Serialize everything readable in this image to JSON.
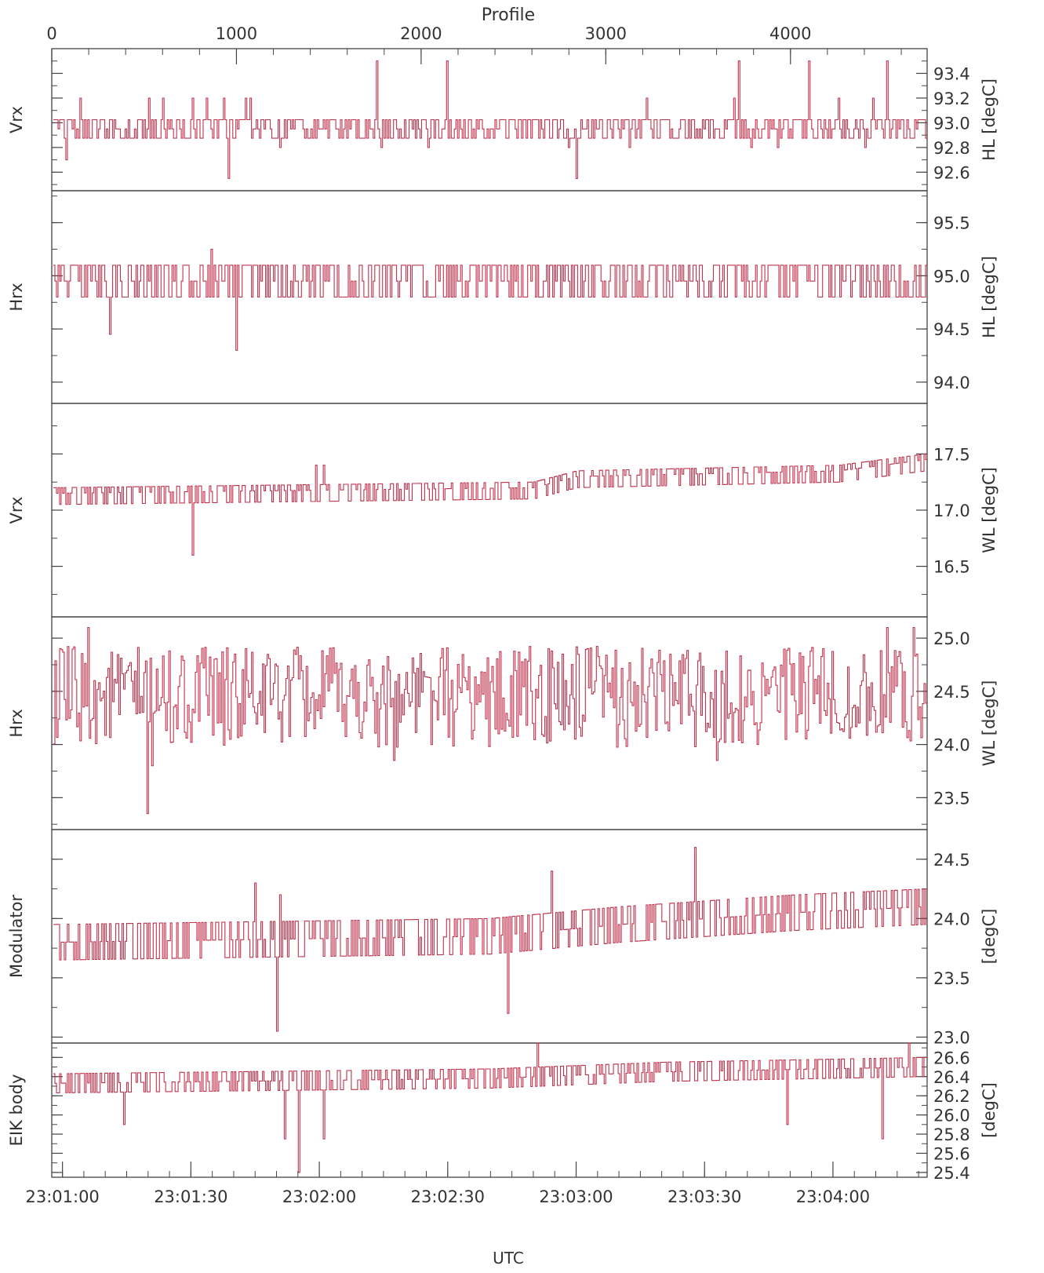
{
  "colors": {
    "series": "#c0334d",
    "axis": "#444444",
    "text": "#333333"
  },
  "top_axis": {
    "label": "Profile",
    "ticks": [
      "0",
      "1000",
      "2000",
      "3000",
      "4000"
    ],
    "values": [
      0,
      1000,
      2000,
      3000,
      4000
    ],
    "range": [
      0,
      4740
    ]
  },
  "bottom_axis": {
    "label": "UTC",
    "ticks": [
      "23:01:00",
      "23:01:30",
      "23:02:00",
      "23:02:30",
      "23:03:00",
      "23:03:30",
      "23:04:00"
    ],
    "values_seconds": [
      60,
      90,
      120,
      150,
      180,
      210,
      240
    ],
    "range_seconds": [
      57.5,
      262
    ]
  },
  "chart_data": [
    {
      "type": "line",
      "ylabel_left": "Vrx",
      "ylabel_right": "HL  [degC]",
      "ylim": [
        92.45,
        93.6
      ],
      "ytick_labels": [
        "92.6",
        "92.8",
        "93.0",
        "93.2",
        "93.4"
      ],
      "ytick_values": [
        92.6,
        92.8,
        93.0,
        93.2,
        93.4
      ],
      "baseline": 92.95,
      "lo": 92.875,
      "hi": 93.025,
      "spikes": [
        [
          0.015,
          92.7
        ],
        [
          0.03,
          93.2
        ],
        [
          0.11,
          93.2
        ],
        [
          0.125,
          93.2
        ],
        [
          0.16,
          93.2
        ],
        [
          0.175,
          93.2
        ],
        [
          0.195,
          93.2
        ],
        [
          0.22,
          93.2
        ],
        [
          0.2,
          92.55
        ],
        [
          0.225,
          93.2
        ],
        [
          0.26,
          92.8
        ],
        [
          0.37,
          93.5
        ],
        [
          0.375,
          92.8
        ],
        [
          0.45,
          93.5
        ],
        [
          0.43,
          92.8
        ],
        [
          0.6,
          92.55
        ],
        [
          0.59,
          92.8
        ],
        [
          0.68,
          93.2
        ],
        [
          0.66,
          92.8
        ],
        [
          0.78,
          93.2
        ],
        [
          0.785,
          93.5
        ],
        [
          0.8,
          92.8
        ],
        [
          0.83,
          92.8
        ],
        [
          0.865,
          93.5
        ],
        [
          0.9,
          93.2
        ],
        [
          0.93,
          92.8
        ],
        [
          0.955,
          93.5
        ],
        [
          0.94,
          93.2
        ]
      ]
    },
    {
      "type": "line",
      "ylabel_left": "Hrx",
      "ylabel_right": "HL  [degC]",
      "ylim": [
        93.8,
        95.8
      ],
      "ytick_labels": [
        "94.0",
        "94.5",
        "95.0",
        "95.5"
      ],
      "ytick_values": [
        94.0,
        94.5,
        95.0,
        95.5
      ],
      "baseline": 94.95,
      "lo": 94.8,
      "hi": 95.1,
      "spikes": [
        [
          0.065,
          94.45
        ],
        [
          0.085,
          95.1
        ],
        [
          0.14,
          95.1
        ],
        [
          0.18,
          95.25
        ],
        [
          0.21,
          94.3
        ],
        [
          0.3,
          95.1
        ],
        [
          0.3,
          94.85
        ],
        [
          0.3,
          94.85
        ],
        [
          0.3,
          95.1
        ],
        [
          0.305,
          95.1
        ],
        [
          0.31,
          95.1
        ],
        [
          0.305,
          95.1
        ],
        [
          0.305,
          95.1
        ],
        [
          0.305,
          95.1
        ],
        [
          0.3,
          95.1
        ],
        [
          0.3,
          95.1
        ],
        [
          0.3,
          95.1
        ],
        [
          0.305,
          95.1
        ],
        [
          0.3,
          95.1
        ],
        [
          0.3,
          95.1
        ],
        [
          0.3,
          95.1
        ],
        [
          0.3,
          95.1
        ],
        [
          0.305,
          95.1
        ],
        [
          0.3,
          95.1
        ],
        [
          0.305,
          95.1
        ],
        [
          0.3,
          95.1
        ],
        [
          0.3,
          95.1
        ],
        [
          0.3,
          95.1
        ],
        [
          0.305,
          95.1
        ],
        [
          0.3,
          95.1
        ],
        [
          0.3,
          95.1
        ],
        [
          0.3,
          95.1
        ],
        [
          0.305,
          95.1
        ],
        [
          0.3,
          95.1
        ],
        [
          0.3,
          95.1
        ],
        [
          0.3,
          95.1
        ],
        [
          0.3,
          95.1
        ],
        [
          0.3,
          95.1
        ],
        [
          0.3,
          95.1
        ],
        [
          0.3,
          95.1
        ],
        [
          0.305,
          95.1
        ],
        [
          0.3,
          95.1
        ],
        [
          0.3,
          95.1
        ],
        [
          0.3,
          95.1
        ],
        [
          0.305,
          95.1
        ],
        [
          0.3,
          95.1
        ],
        [
          0.3,
          95.1
        ],
        [
          0.3,
          95.1
        ],
        [
          0.3,
          95.1
        ],
        [
          0.3,
          95.1
        ],
        [
          0.3,
          95.1
        ],
        [
          0.3,
          95.1
        ],
        [
          0.3,
          95.1
        ],
        [
          0.305,
          95.1
        ],
        [
          0.3,
          95.1
        ],
        [
          0.3,
          95.1
        ],
        [
          0.305,
          95.1
        ],
        [
          0.3,
          95.1
        ],
        [
          0.3,
          95.1
        ],
        [
          0.3,
          95.1
        ],
        [
          0.3,
          95.1
        ],
        [
          0.305,
          95.1
        ],
        [
          0.305,
          95.1
        ],
        [
          0.3,
          95.1
        ],
        [
          0.305,
          95.1
        ],
        [
          0.3,
          95.1
        ],
        [
          0.3,
          95.1
        ],
        [
          0.305,
          95.1
        ],
        [
          0.3,
          95.1
        ],
        [
          0.3,
          95.1
        ],
        [
          0.3,
          95.1
        ],
        [
          0.3,
          95.1
        ],
        [
          0.305,
          95.1
        ],
        [
          0.3,
          95.1
        ],
        [
          0.3,
          95.1
        ],
        [
          0.305,
          95.1
        ],
        [
          0.3,
          95.1
        ],
        [
          0.3,
          95.1
        ],
        [
          0.3,
          95.1
        ],
        [
          0.305,
          95.1
        ],
        [
          0.3,
          95.1
        ],
        [
          0.305,
          95.1
        ],
        [
          0.3,
          95.1
        ],
        [
          0.3,
          95.1
        ],
        [
          0.3,
          95.1
        ],
        [
          0.3,
          95.1
        ],
        [
          0.3,
          95.1
        ]
      ]
    },
    {
      "type": "line",
      "ylabel_left": "Vrx",
      "ylabel_right": "WL  [degC]",
      "ylim": [
        16.05,
        17.95
      ],
      "ytick_labels": [
        "16.5",
        "17.0",
        "17.5"
      ],
      "ytick_values": [
        16.5,
        17.0,
        17.5
      ],
      "baseline": 17.2,
      "lo": 17.1,
      "hi": 17.25,
      "trend": [
        [
          0.0,
          17.15
        ],
        [
          0.55,
          17.2
        ],
        [
          0.6,
          17.3
        ],
        [
          0.9,
          17.35
        ],
        [
          1.0,
          17.45
        ]
      ],
      "spikes": [
        [
          0.16,
          16.6
        ],
        [
          0.31,
          17.4
        ],
        [
          0.31,
          17.4
        ],
        [
          0.3,
          17.4
        ],
        [
          0.31,
          17.4
        ],
        [
          0.31,
          17.4
        ],
        [
          0.31,
          17.4
        ],
        [
          0.31,
          17.4
        ],
        [
          0.31,
          17.4
        ],
        [
          0.31,
          17.4
        ],
        [
          0.31,
          17.4
        ],
        [
          0.31,
          17.4
        ],
        [
          0.31,
          17.4
        ],
        [
          0.31,
          17.4
        ],
        [
          0.31,
          17.4
        ],
        [
          0.31,
          17.4
        ]
      ]
    },
    {
      "type": "line",
      "ylabel_left": "Hrx",
      "ylabel_right": "WL  [degC]",
      "ylim": [
        23.2,
        25.2
      ],
      "ytick_labels": [
        "23.5",
        "24.0",
        "24.5",
        "25.0"
      ],
      "ytick_values": [
        23.5,
        24.0,
        24.5,
        25.0
      ],
      "baseline": 24.45,
      "lo": 24.15,
      "hi": 24.75,
      "spikes": [
        [
          0.108,
          23.35
        ],
        [
          0.112,
          23.8
        ],
        [
          0.39,
          23.85
        ],
        [
          0.76,
          23.85
        ],
        [
          0.04,
          25.1
        ],
        [
          0.955,
          25.1
        ],
        [
          0.985,
          25.1
        ]
      ]
    },
    {
      "type": "line",
      "ylabel_left": "Modulator",
      "ylabel_right": "[degC]",
      "ylim": [
        22.95,
        24.75
      ],
      "ytick_labels": [
        "23.0",
        "23.5",
        "24.0",
        "24.5"
      ],
      "ytick_values": [
        23.0,
        23.5,
        24.0,
        24.5
      ],
      "baseline": 23.85,
      "lo": 23.7,
      "hi": 24.0,
      "trend": [
        [
          0.0,
          23.8
        ],
        [
          0.5,
          23.85
        ],
        [
          0.65,
          23.95
        ],
        [
          0.85,
          24.05
        ],
        [
          1.0,
          24.1
        ]
      ],
      "spikes": [
        [
          0.23,
          24.3
        ],
        [
          0.255,
          23.05
        ],
        [
          0.52,
          23.2
        ],
        [
          0.57,
          24.4
        ],
        [
          0.735,
          24.6
        ],
        [
          0.26,
          24.2
        ]
      ]
    },
    {
      "type": "line",
      "ylabel_left": "EIK  body",
      "ylabel_right": "[degC]",
      "ylim": [
        25.35,
        26.75
      ],
      "ytick_labels": [
        "25.4",
        "25.6",
        "25.8",
        "26.0",
        "26.2",
        "26.4",
        "26.6"
      ],
      "ytick_values": [
        25.4,
        25.6,
        25.8,
        26.0,
        26.2,
        26.4,
        26.6
      ],
      "baseline": 26.35,
      "lo": 26.25,
      "hi": 26.45,
      "trend": [
        [
          0.0,
          26.33
        ],
        [
          0.5,
          26.38
        ],
        [
          0.7,
          26.45
        ],
        [
          1.0,
          26.5
        ]
      ],
      "spikes": [
        [
          0.28,
          25.4
        ],
        [
          0.265,
          25.75
        ],
        [
          0.31,
          25.75
        ],
        [
          0.95,
          25.75
        ],
        [
          0.08,
          25.9
        ],
        [
          0.84,
          25.9
        ],
        [
          0.555,
          26.75
        ],
        [
          0.98,
          26.75
        ]
      ]
    }
  ]
}
